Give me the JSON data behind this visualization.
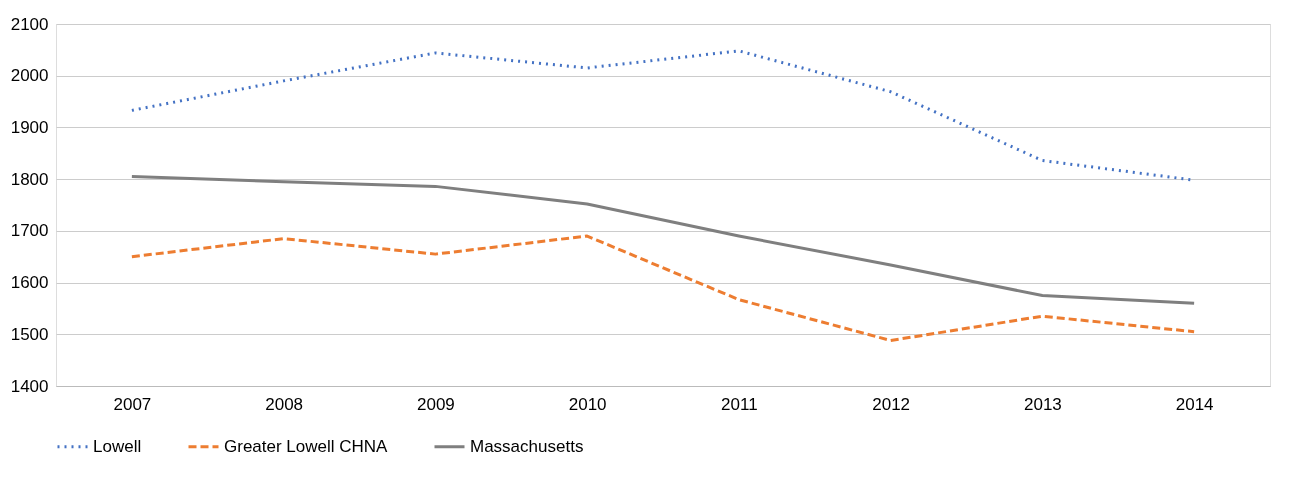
{
  "chart_data": {
    "type": "line",
    "categories": [
      "2007",
      "2008",
      "2009",
      "2010",
      "2011",
      "2012",
      "2013",
      "2014"
    ],
    "series": [
      {
        "name": "Lowell",
        "color": "#4472c4",
        "line_style": "dotted",
        "values": [
          1933,
          1990,
          2044,
          2015,
          2048,
          1969,
          1836,
          1798
        ]
      },
      {
        "name": "Greater Lowell CHNA",
        "color": "#ed7d31",
        "line_style": "dashed",
        "values": [
          1650,
          1685,
          1655,
          1690,
          1567,
          1488,
          1535,
          1505
        ]
      },
      {
        "name": "Massachusetts",
        "color": "#7f7f7f",
        "line_style": "solid",
        "values": [
          1805,
          1795,
          1786,
          1752,
          1690,
          1634,
          1575,
          1560
        ]
      }
    ],
    "ylim": [
      1400,
      2100
    ],
    "yticks": [
      1400,
      1500,
      1600,
      1700,
      1800,
      1900,
      2000,
      2100
    ],
    "grid": "y",
    "legend": "bottom",
    "marker": "none"
  }
}
